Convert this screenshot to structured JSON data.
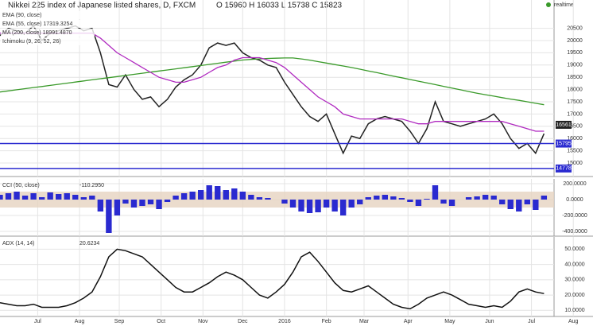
{
  "chart_data": [
    {
      "type": "line",
      "title": "Nikkei 225 index of Japanese listed shares, D, FXCM",
      "subtitle": "O 15960 H 16033 L 15738 C 15823",
      "status": "realtime",
      "legend_labels": [
        "EMA (90, close)",
        "EMA (55, close) 17319.3254",
        "MA (200, close) 18991.4870",
        "Ichimoku (9, 26, 52, 26)"
      ],
      "x": [
        0,
        4,
        8,
        12,
        16,
        20,
        24,
        28,
        32,
        36,
        40,
        44,
        48,
        52,
        56,
        60,
        64,
        68,
        72,
        76,
        80,
        84,
        88,
        92,
        96,
        100,
        104,
        108,
        112,
        116,
        120,
        124,
        128,
        132,
        136,
        140,
        144,
        148,
        152,
        156,
        160,
        164,
        168,
        172,
        176,
        180,
        184,
        188,
        192,
        196,
        200,
        204,
        208,
        212,
        216,
        220,
        224,
        228,
        232,
        236,
        240,
        244,
        248,
        252,
        256,
        260
      ],
      "xlim": [
        0,
        280
      ],
      "series": [
        {
          "name": "Close",
          "color": "#222222",
          "values": [
            20200,
            20500,
            20400,
            20300,
            20600,
            20000,
            20300,
            20400,
            20500,
            20600,
            20400,
            20500,
            19500,
            18200,
            18100,
            18600,
            18000,
            17600,
            17700,
            17300,
            17600,
            18100,
            18400,
            18600,
            19000,
            19700,
            19900,
            19800,
            19900,
            19500,
            19300,
            19200,
            19000,
            18900,
            18300,
            17800,
            17300,
            16900,
            16700,
            17000,
            16200,
            15400,
            16100,
            16000,
            16600,
            16800,
            16900,
            16800,
            16700,
            16300,
            15800,
            16400,
            17500,
            16700,
            16600,
            16500,
            16600,
            16700,
            16800,
            17000,
            16600,
            16000,
            15600,
            15800,
            15400,
            16200
          ]
        },
        {
          "name": "MA (200, close)",
          "color": "#3a9a2a",
          "values": [
            17900,
            17945,
            17990,
            18035,
            18080,
            18125,
            18170,
            18215,
            18260,
            18305,
            18350,
            18395,
            18440,
            18485,
            18530,
            18575,
            18620,
            18665,
            18710,
            18755,
            18800,
            18845,
            18890,
            18935,
            18980,
            19025,
            19070,
            19115,
            19160,
            19205,
            19230,
            19250,
            19270,
            19280,
            19290,
            19290,
            19250,
            19200,
            19140,
            19080,
            19020,
            18960,
            18900,
            18830,
            18760,
            18690,
            18620,
            18550,
            18480,
            18410,
            18340,
            18270,
            18200,
            18130,
            18060,
            17990,
            17920,
            17850,
            17790,
            17730,
            17670,
            17610,
            17560,
            17500,
            17440,
            17380
          ]
        },
        {
          "name": "EMA (55, close)",
          "color": "#b02ac0",
          "values": [
            20300,
            20300,
            20300,
            20300,
            20300,
            20300,
            20300,
            20300,
            20300,
            20300,
            20300,
            20300,
            20100,
            19800,
            19500,
            19300,
            19100,
            18900,
            18700,
            18500,
            18400,
            18300,
            18300,
            18400,
            18500,
            18700,
            18900,
            19000,
            19200,
            19300,
            19300,
            19300,
            19200,
            19100,
            18900,
            18600,
            18300,
            18000,
            17700,
            17500,
            17300,
            17000,
            16900,
            16800,
            16800,
            16800,
            16800,
            16800,
            16800,
            16700,
            16600,
            16600,
            16700,
            16700,
            16700,
            16700,
            16700,
            16700,
            16700,
            16700,
            16700,
            16600,
            16500,
            16400,
            16300,
            16300
          ]
        }
      ],
      "hlines": [
        {
          "value": 15795,
          "color": "#2a2ad0"
        },
        {
          "value": 14778,
          "color": "#2a2ad0"
        }
      ],
      "last_price": 16561,
      "ylim": [
        14450,
        21200
      ],
      "yticks": [
        15000,
        15500,
        16000,
        16500,
        17000,
        17500,
        18000,
        18500,
        19000,
        19500,
        20000,
        20500
      ],
      "grid": true
    },
    {
      "type": "bar",
      "title": "CCI (50, close)",
      "legend_value": "-110.2950",
      "color": "#2a2ad0",
      "x": [
        0,
        4,
        8,
        12,
        16,
        20,
        24,
        28,
        32,
        36,
        40,
        44,
        48,
        52,
        56,
        60,
        64,
        68,
        72,
        76,
        80,
        84,
        88,
        92,
        96,
        100,
        104,
        108,
        112,
        116,
        120,
        124,
        128,
        132,
        136,
        140,
        144,
        148,
        152,
        156,
        160,
        164,
        168,
        172,
        176,
        180,
        184,
        188,
        192,
        196,
        200,
        204,
        208,
        212,
        216,
        220,
        224,
        228,
        232,
        236,
        240,
        244,
        248,
        252,
        256,
        260
      ],
      "xlim": [
        0,
        280
      ],
      "values": [
        60,
        80,
        100,
        50,
        80,
        30,
        90,
        70,
        80,
        60,
        30,
        50,
        -150,
        -420,
        -200,
        -50,
        -100,
        -80,
        -60,
        -120,
        -30,
        50,
        80,
        100,
        120,
        180,
        170,
        120,
        140,
        100,
        60,
        30,
        20,
        0,
        -50,
        -100,
        -150,
        -170,
        -160,
        -100,
        -150,
        -200,
        -100,
        -60,
        30,
        50,
        60,
        40,
        20,
        -30,
        -80,
        10,
        180,
        -50,
        -80,
        0,
        30,
        40,
        60,
        50,
        -60,
        -120,
        -150,
        -60,
        -130,
        50
      ],
      "band": [
        -100,
        100
      ],
      "ylim": [
        -460,
        260
      ],
      "yticks": [
        {
          "value": 200,
          "label": "200.0000"
        },
        {
          "value": 0,
          "label": "0.0000"
        },
        {
          "value": -200,
          "label": "-200.0000"
        },
        {
          "value": -400,
          "label": "-400.0000"
        }
      ],
      "grid": true
    },
    {
      "type": "line",
      "title": "ADX (14, 14)",
      "legend_value": "20.6234",
      "x": [
        0,
        4,
        8,
        12,
        16,
        20,
        24,
        28,
        32,
        36,
        40,
        44,
        48,
        52,
        56,
        60,
        64,
        68,
        72,
        76,
        80,
        84,
        88,
        92,
        96,
        100,
        104,
        108,
        112,
        116,
        120,
        124,
        128,
        132,
        136,
        140,
        144,
        148,
        152,
        156,
        160,
        164,
        168,
        172,
        176,
        180,
        184,
        188,
        192,
        196,
        200,
        204,
        208,
        212,
        216,
        220,
        224,
        228,
        232,
        236,
        240,
        244,
        248,
        252,
        256,
        260
      ],
      "xlim": [
        0,
        280
      ],
      "series": [
        {
          "name": "ADX",
          "color": "#111111",
          "values": [
            15,
            14,
            13,
            13,
            14,
            12,
            12,
            12,
            13,
            15,
            18,
            22,
            32,
            45,
            50,
            49,
            47,
            45,
            40,
            35,
            30,
            25,
            22,
            22,
            25,
            28,
            32,
            35,
            33,
            30,
            25,
            20,
            18,
            22,
            27,
            35,
            45,
            48,
            42,
            35,
            28,
            23,
            22,
            24,
            26,
            22,
            18,
            14,
            12,
            11,
            14,
            18,
            20,
            22,
            20,
            17,
            14,
            13,
            12,
            13,
            12,
            16,
            22,
            24,
            22,
            21
          ]
        }
      ],
      "ylim": [
        6,
        58
      ],
      "yticks": [
        {
          "value": 50,
          "label": "50.0000"
        },
        {
          "value": 40,
          "label": "40.0000"
        },
        {
          "value": 30,
          "label": "30.0000"
        },
        {
          "value": 20,
          "label": "20.0000"
        },
        {
          "value": 10,
          "label": "10.0000"
        }
      ],
      "xticks": [
        {
          "value": 18,
          "label": "Jul"
        },
        {
          "value": 38,
          "label": "Aug"
        },
        {
          "value": 57,
          "label": "Sep"
        },
        {
          "value": 77,
          "label": "Oct"
        },
        {
          "value": 97,
          "label": "Nov"
        },
        {
          "value": 116,
          "label": "Dec"
        },
        {
          "value": 136,
          "label": "2016"
        },
        {
          "value": 156,
          "label": "Feb"
        },
        {
          "value": 174,
          "label": "Mar"
        },
        {
          "value": 195,
          "label": "Apr"
        },
        {
          "value": 215,
          "label": "May"
        },
        {
          "value": 234,
          "label": "Jun"
        },
        {
          "value": 254,
          "label": "Jul"
        },
        {
          "value": 274,
          "label": "Aug"
        }
      ],
      "grid": true
    }
  ]
}
